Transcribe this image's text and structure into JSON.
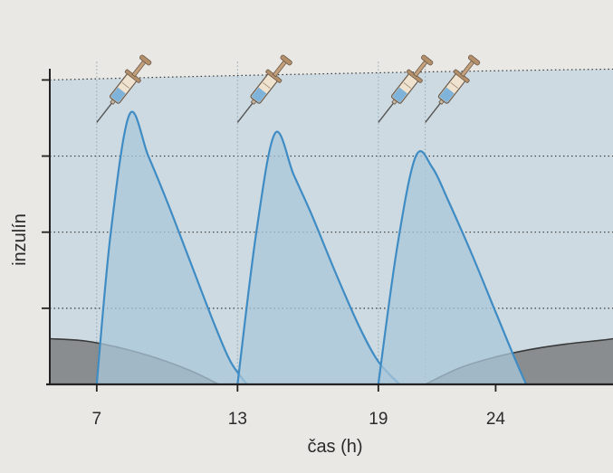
{
  "chart_data": {
    "type": "area",
    "title": "",
    "xlabel": "čas (h)",
    "ylabel": "inzulín",
    "x_ticks": [
      7,
      13,
      19,
      24
    ],
    "xlim": [
      5,
      29
    ],
    "ylim": [
      0,
      4.1
    ],
    "grid": true,
    "y_gridlines": [
      1,
      2,
      3,
      4
    ],
    "basal_level": 4.0,
    "injection_times": [
      7,
      13,
      19,
      21
    ],
    "series": [
      {
        "style": "bolus",
        "x": [
          7,
          7.6,
          8.4,
          9.2,
          10.0,
          11.0,
          12.0,
          12.7,
          13.4
        ],
        "y": [
          0,
          2.0,
          3.55,
          3.0,
          2.4,
          1.6,
          0.8,
          0.3,
          0
        ]
      },
      {
        "style": "bolus",
        "x": [
          13.0,
          13.8,
          14.6,
          15.4,
          16.2,
          17.2,
          18.2,
          19.0,
          19.9
        ],
        "y": [
          0,
          2.0,
          3.3,
          2.75,
          2.2,
          1.45,
          0.75,
          0.3,
          0
        ]
      },
      {
        "style": "bolus",
        "x": [
          19.0,
          19.8,
          20.6,
          21.3,
          22.0,
          23.0,
          24.0,
          24.8,
          25.3
        ],
        "y": [
          0,
          1.8,
          3.0,
          2.85,
          2.4,
          1.7,
          0.95,
          0.35,
          0
        ]
      },
      {
        "style": "basal-dark",
        "x": [
          5,
          6.5,
          8,
          9.5,
          11,
          12.2
        ],
        "y": [
          0.6,
          0.57,
          0.48,
          0.35,
          0.18,
          0
        ]
      },
      {
        "style": "basal-dark",
        "x": [
          21,
          22.5,
          24,
          25.5,
          27,
          28.5,
          29
        ],
        "y": [
          0,
          0.22,
          0.36,
          0.46,
          0.53,
          0.58,
          0.6
        ]
      }
    ],
    "colors": {
      "bolus_stroke": "#3f8cc4",
      "bolus_fill": "#a9c7d9",
      "basal_fill": "#c8d7e1",
      "dark_fill": "#7c7f80"
    }
  }
}
